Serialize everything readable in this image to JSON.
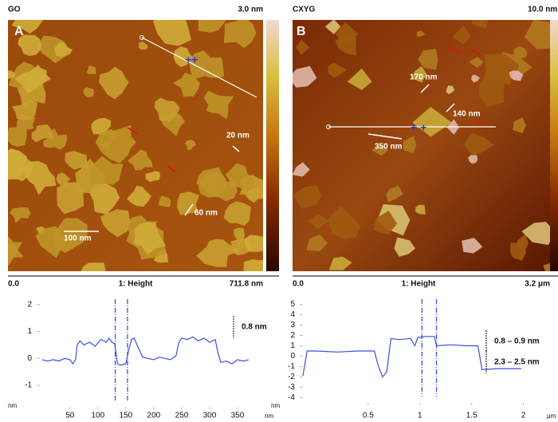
{
  "panels": [
    {
      "title": "GO",
      "letter": "A",
      "scale_max": "3.0 nm",
      "scale_min": "0.0",
      "channel": "1: Height",
      "size": "711.8 nm",
      "annotations": [
        "20 nm",
        "60 nm",
        "100 nm"
      ],
      "profile": {
        "type": "line",
        "color": "#3b4fe0",
        "x": [
          0,
          10,
          20,
          30,
          40,
          50,
          55,
          60,
          63,
          68,
          75,
          85,
          95,
          105,
          115,
          120,
          125,
          130,
          135,
          140,
          150,
          155,
          160,
          165,
          170,
          180,
          190,
          200,
          210,
          220,
          230,
          240,
          245,
          250,
          260,
          270,
          280,
          290,
          300,
          310,
          315,
          320,
          330,
          340,
          350,
          360,
          370
        ],
        "values": [
          -0.05,
          -0.1,
          -0.05,
          -0.1,
          0,
          -0.05,
          -0.2,
          -0.05,
          0.5,
          0.65,
          0.5,
          0.6,
          0.45,
          0.7,
          0.6,
          0.75,
          0.6,
          0.55,
          -0.2,
          -0.25,
          -0.2,
          0.3,
          0.7,
          0.75,
          0.5,
          0.05,
          0.0,
          -0.05,
          0.05,
          0.0,
          -0.05,
          0.1,
          0.6,
          0.75,
          0.7,
          0.8,
          0.65,
          0.75,
          0.6,
          0.7,
          0.2,
          -0.15,
          -0.1,
          -0.2,
          -0.05,
          -0.1,
          -0.05
        ],
        "xlim": [
          -4,
          390
        ],
        "ylim": [
          -1.8,
          2.2
        ],
        "xticks": [
          50,
          100,
          150,
          200,
          250,
          300,
          350
        ],
        "yticks": [
          -1,
          0,
          1,
          2
        ],
        "xlabel": "nm",
        "ylabel": "nm",
        "cursors": [
          131,
          153
        ],
        "annotations": [
          "0.8 nm"
        ]
      }
    },
    {
      "title": "CXYG",
      "letter": "B",
      "scale_max": "10.0 nm",
      "scale_min": "0.0",
      "channel": "1: Height",
      "size": "3.2 μm",
      "annotations": [
        "170 nm",
        "140 nm",
        "350 nm"
      ],
      "profile": {
        "type": "line",
        "color": "#3b4fe0",
        "x": [
          -0.13,
          -0.09,
          0,
          0.2,
          0.4,
          0.56,
          0.6,
          0.64,
          0.68,
          0.72,
          0.8,
          0.91,
          0.95,
          0.98,
          1.05,
          1.14,
          1.16,
          1.3,
          1.45,
          1.56,
          1.6,
          1.75,
          1.98
        ],
        "values": [
          -1.9,
          0.5,
          0.5,
          0.4,
          0.5,
          0.5,
          -1.0,
          -2.0,
          -1.5,
          1.7,
          1.6,
          1.7,
          1.0,
          1.8,
          1.9,
          1.9,
          1.0,
          1.1,
          1.0,
          1.0,
          -1.3,
          -1.2,
          -1.2
        ],
        "xlim": [
          -0.13,
          2.18
        ],
        "ylim": [
          -4.5,
          5.5
        ],
        "xticks": [
          0.5,
          1,
          1.5,
          2
        ],
        "yticks": [
          -4,
          -3,
          -2,
          -1,
          0,
          1,
          2,
          3,
          4,
          5
        ],
        "xlabel": "μm",
        "ylabel": "nm",
        "cursors": [
          1.02,
          1.16
        ],
        "annotations": [
          "0.8 – 0.9 nm",
          "2.3 – 2.5 nm"
        ]
      }
    }
  ]
}
